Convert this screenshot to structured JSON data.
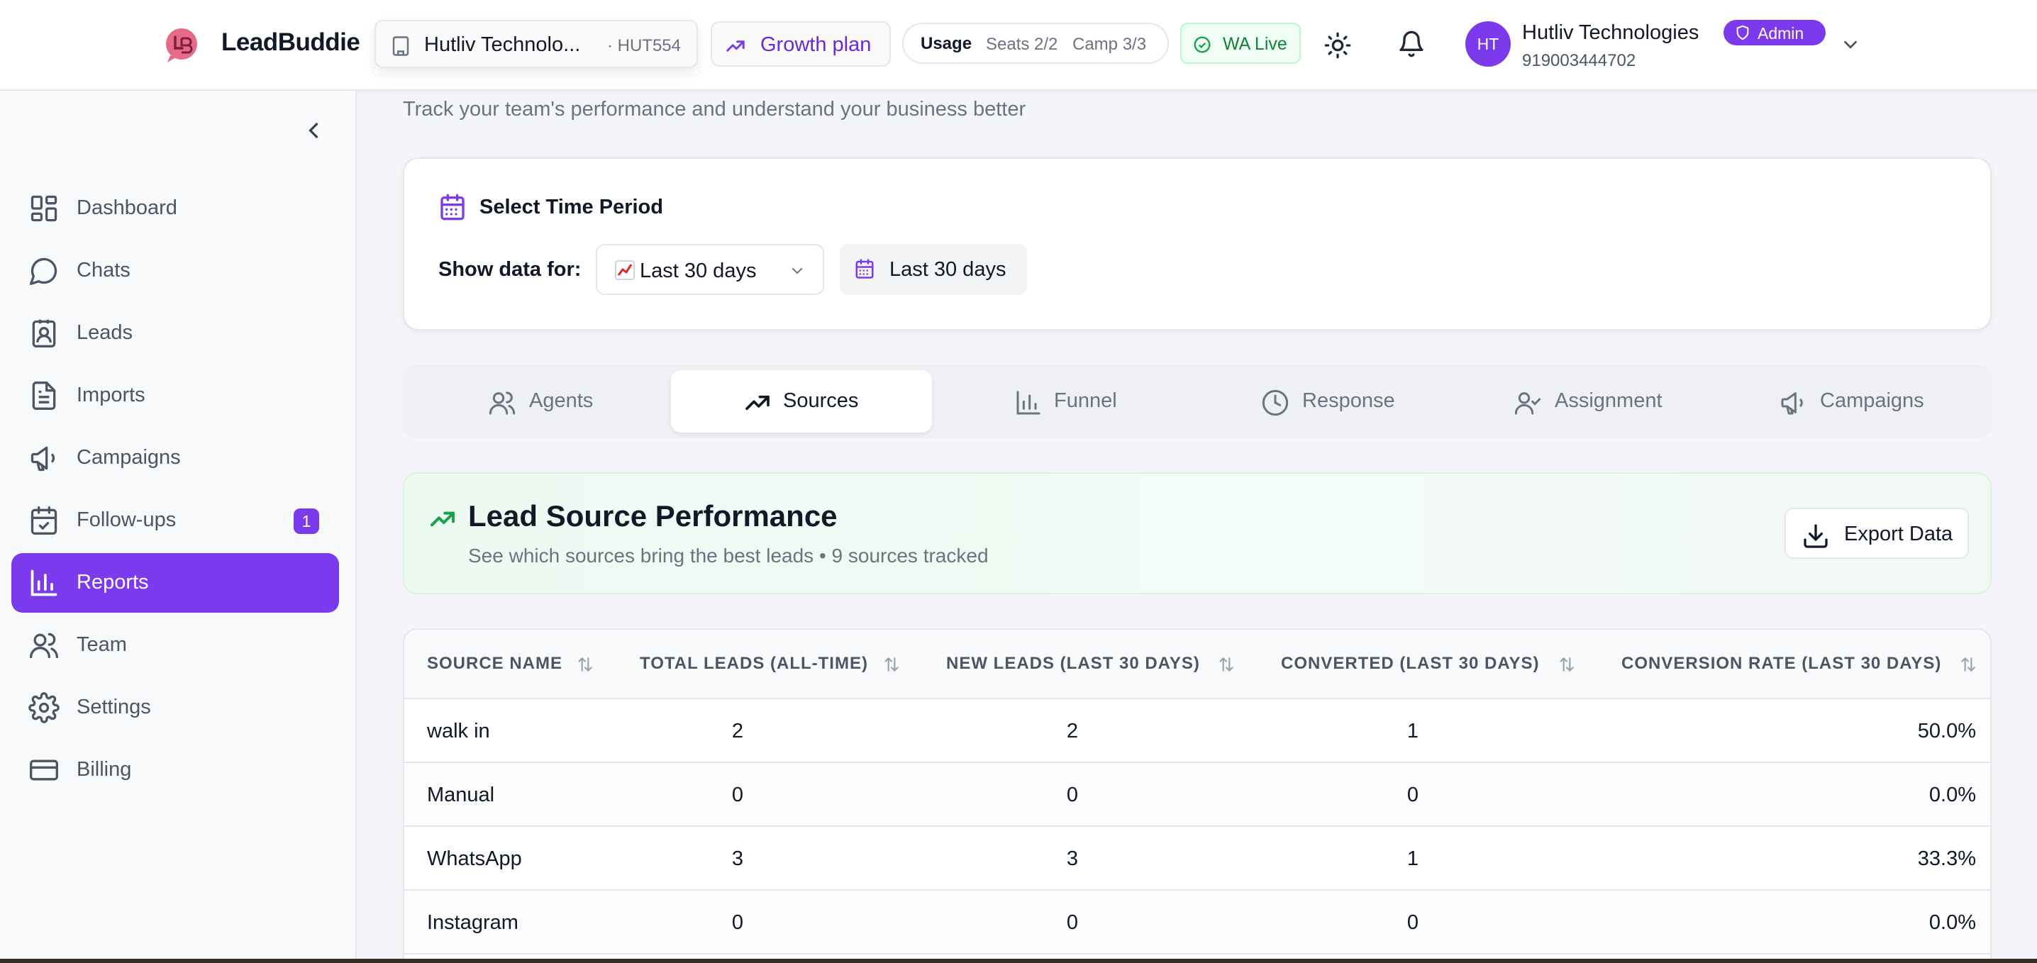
{
  "header": {
    "logo_text": "LeadBuddie",
    "org_name": "Hutliv Technolo...",
    "org_code": "· HUT554",
    "plan_label": "Growth plan",
    "usage_label": "Usage",
    "usage_seats": "Seats 2/2",
    "usage_camp": "Camp 3/3",
    "wa_status": "WA Live",
    "avatar_initials": "HT",
    "user_name": "Hutliv Technologies",
    "user_role": "Admin",
    "user_phone": "919003444702",
    "colors": {
      "accent": "#7c3aed",
      "wa_green": "#15803d",
      "logo_pink": "#e86a8a"
    }
  },
  "sidebar": {
    "items": [
      {
        "label": "Dashboard",
        "icon": "dashboard-grid-icon"
      },
      {
        "label": "Chats",
        "icon": "chat-bubble-icon"
      },
      {
        "label": "Leads",
        "icon": "contact-card-icon"
      },
      {
        "label": "Imports",
        "icon": "document-icon"
      },
      {
        "label": "Campaigns",
        "icon": "megaphone-icon"
      },
      {
        "label": "Follow-ups",
        "icon": "calendar-check-icon",
        "badge": "1"
      },
      {
        "label": "Reports",
        "icon": "bar-chart-icon",
        "active": true
      },
      {
        "label": "Team",
        "icon": "users-icon"
      },
      {
        "label": "Settings",
        "icon": "gear-icon"
      },
      {
        "label": "Billing",
        "icon": "credit-card-icon"
      }
    ]
  },
  "main": {
    "subtitle": "Track your team's performance and understand your business better",
    "period": {
      "title": "Select Time Period",
      "show_label": "Show data for:",
      "select_value": "Last 30 days",
      "range_value": "Last 30 days"
    },
    "tabs": [
      {
        "label": "Agents",
        "icon": "users-icon"
      },
      {
        "label": "Sources",
        "icon": "trending-up-icon",
        "active": true
      },
      {
        "label": "Funnel",
        "icon": "bar-chart-icon"
      },
      {
        "label": "Response",
        "icon": "clock-icon"
      },
      {
        "label": "Assignment",
        "icon": "user-check-icon"
      },
      {
        "label": "Campaigns",
        "icon": "megaphone-icon"
      }
    ],
    "source_card": {
      "title": "Lead Source Performance",
      "subtitle": "See which sources bring the best leads • 9 sources tracked",
      "export_label": "Export Data"
    },
    "table": {
      "columns": [
        "SOURCE NAME",
        "TOTAL LEADS (ALL-TIME)",
        "NEW LEADS (LAST 30 DAYS)",
        "CONVERTED (LAST 30 DAYS)",
        "CONVERSION RATE (LAST 30 DAYS)"
      ],
      "rows": [
        [
          "walk in",
          "2",
          "2",
          "1",
          "50.0%"
        ],
        [
          "Manual",
          "0",
          "0",
          "0",
          "0.0%"
        ],
        [
          "WhatsApp",
          "3",
          "3",
          "1",
          "33.3%"
        ],
        [
          "Instagram",
          "0",
          "0",
          "0",
          "0.0%"
        ]
      ]
    }
  }
}
